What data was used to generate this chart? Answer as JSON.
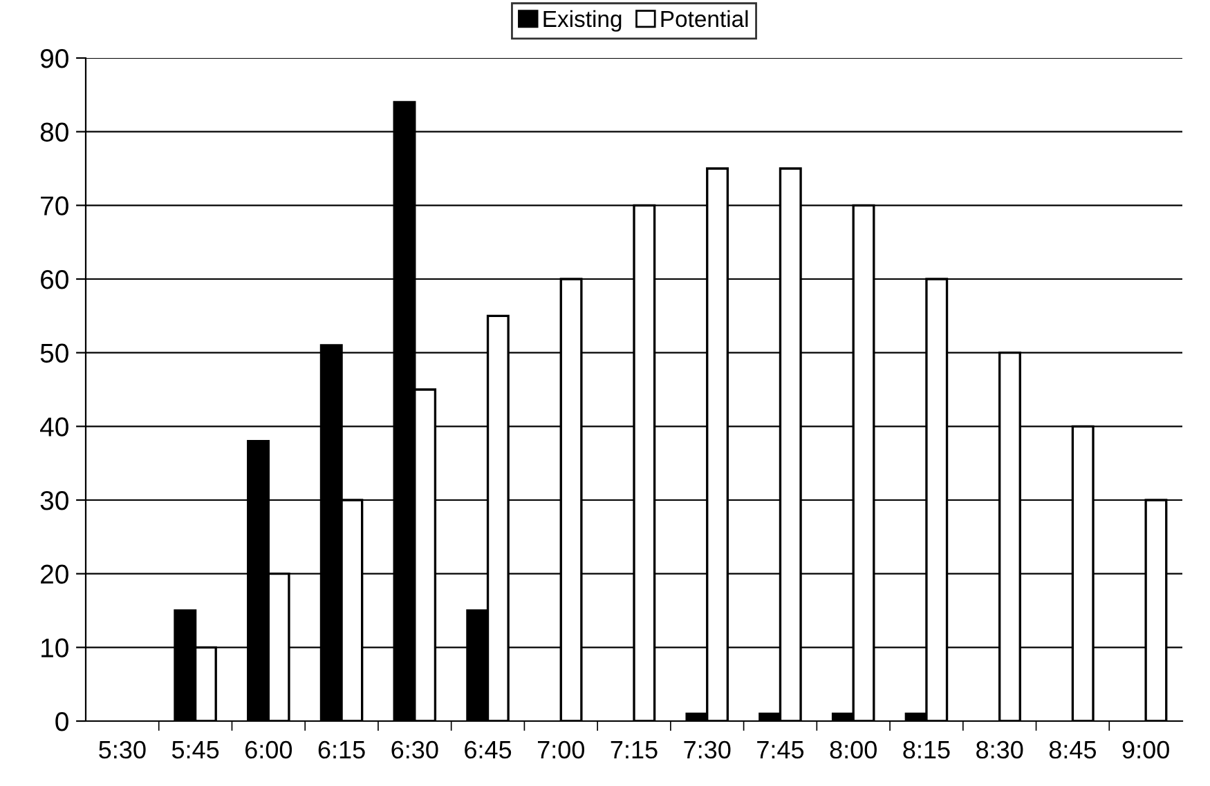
{
  "chart_data": {
    "type": "bar",
    "categories": [
      "5:30",
      "5:45",
      "6:00",
      "6:15",
      "6:30",
      "6:45",
      "7:00",
      "7:15",
      "7:30",
      "7:45",
      "8:00",
      "8:15",
      "8:30",
      "8:45",
      "9:00"
    ],
    "series": [
      {
        "name": "Existing",
        "color": "#000000",
        "values": [
          0,
          15,
          38,
          51,
          84,
          15,
          0,
          0,
          1,
          1,
          1,
          1,
          0,
          0,
          0
        ]
      },
      {
        "name": "Potential",
        "color": "#ffffff",
        "values": [
          0,
          10,
          20,
          30,
          45,
          55,
          60,
          70,
          75,
          75,
          70,
          60,
          50,
          40,
          30
        ]
      }
    ],
    "ylim": [
      0,
      90
    ],
    "yticks": [
      0,
      10,
      20,
      30,
      40,
      50,
      60,
      70,
      80,
      90
    ],
    "grid": "y",
    "legend": "top"
  }
}
